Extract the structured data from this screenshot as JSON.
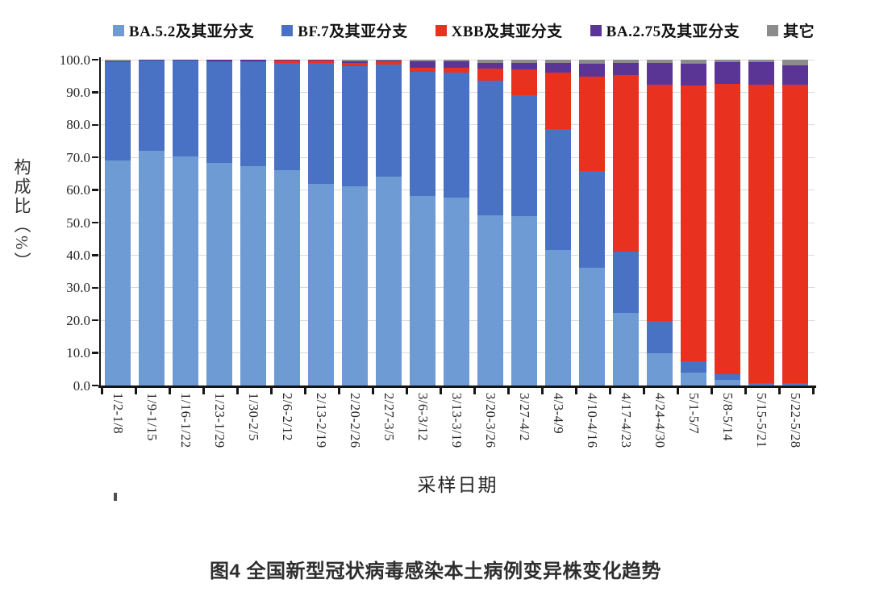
{
  "figure": {
    "y_axis_title": "构成比（%）",
    "x_axis_title": "采样日期",
    "caption": "图4 全国新型冠状病毒感染本土病例变异株变化趋势"
  },
  "chart_data": {
    "type": "bar",
    "subtype": "stacked-vertical",
    "unit": "percent",
    "title": "图4 全国新型冠状病毒感染本土病例变异株变化趋势",
    "xlabel": "采样日期",
    "ylabel": "构成比（%）",
    "ylim": [
      0,
      100
    ],
    "ytick_labels": [
      "0.0",
      "10.0",
      "20.0",
      "30.0",
      "40.0",
      "50.0",
      "60.0",
      "70.0",
      "80.0",
      "90.0",
      "100.0"
    ],
    "grid": "horizontal",
    "legend_position": "top",
    "categories": [
      "1/2-1/8",
      "1/9-1/15",
      "1/16-1/22",
      "1/23-1/29",
      "1/30-2/5",
      "2/6-2/12",
      "2/13-2/19",
      "2/20-2/26",
      "2/27-3/5",
      "3/6-3/12",
      "3/13-3/19",
      "3/20-3/26",
      "3/27-4/2",
      "4/3-4/9",
      "4/10-4/16",
      "4/17-4/23",
      "4/24-4/30",
      "5/1-5/7",
      "5/8-5/14",
      "5/15-5/21",
      "5/22-5/28"
    ],
    "series": [
      {
        "name": "BA.5.2及其亚分支",
        "color": "#6f9bd4",
        "values": [
          69.0,
          72.0,
          70.3,
          68.2,
          67.3,
          66.2,
          62.0,
          61.2,
          64.0,
          58.1,
          57.8,
          52.3,
          51.9,
          41.5,
          36.2,
          22.2,
          9.8,
          4.0,
          1.8,
          0.3,
          0.2
        ]
      },
      {
        "name": "BF.7及其亚分支",
        "color": "#4a72c4",
        "values": [
          30.2,
          27.7,
          29.4,
          31.1,
          32.0,
          32.9,
          37.1,
          36.8,
          34.4,
          38.2,
          38.2,
          41.2,
          37.3,
          37.2,
          29.7,
          19.0,
          10.0,
          3.5,
          1.6,
          0.5,
          0.5
        ]
      },
      {
        "name": "XBB及其亚分支",
        "color": "#e8311f",
        "values": [
          0.1,
          0.1,
          0.1,
          0.1,
          0.1,
          0.6,
          0.6,
          1.0,
          1.0,
          1.3,
          1.6,
          3.7,
          7.8,
          17.3,
          28.9,
          54.0,
          72.6,
          84.5,
          89.3,
          91.6,
          91.7
        ]
      },
      {
        "name": "BA.2.75及其亚分支",
        "color": "#5b3596",
        "values": [
          0.2,
          0.1,
          0.1,
          0.5,
          0.5,
          0.2,
          0.2,
          0.4,
          0.3,
          2.0,
          2.0,
          1.7,
          2.0,
          3.0,
          3.9,
          3.7,
          6.6,
          6.8,
          6.6,
          6.9,
          6.0
        ]
      },
      {
        "name": "其它",
        "color": "#8c8c8c",
        "values": [
          0.5,
          0.1,
          0.1,
          0.1,
          0.1,
          0.1,
          0.1,
          0.6,
          0.3,
          0.4,
          0.4,
          1.1,
          1.0,
          1.0,
          1.3,
          1.1,
          1.0,
          1.2,
          0.7,
          0.7,
          1.6
        ]
      }
    ]
  }
}
